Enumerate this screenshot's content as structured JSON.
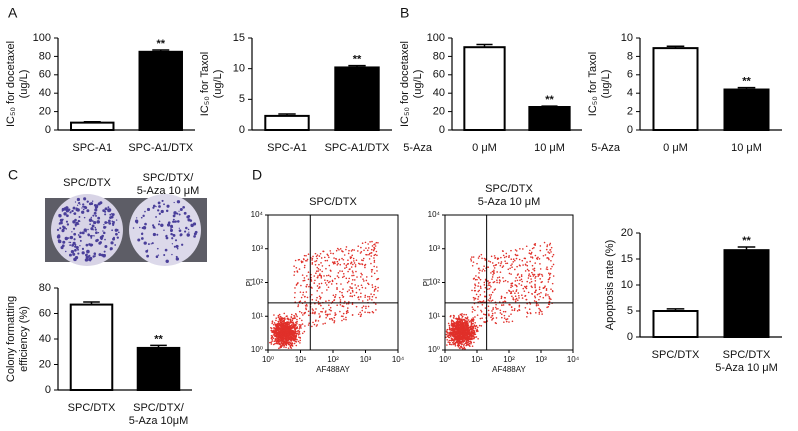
{
  "panels": [
    "A",
    "B",
    "C",
    "D"
  ],
  "photo_labels": [
    [
      "SPC/DTX"
    ],
    [
      "SPC/DTX/",
      "5-Aza 10 μM"
    ]
  ],
  "chart_data": [
    {
      "type": "bar",
      "ylabel": [
        "IC₅₀ for docetaxel",
        "(ug/L)"
      ],
      "categories": [
        [
          "SPC-A1"
        ],
        [
          "SPC-A1/DTX"
        ]
      ],
      "values": [
        8,
        85
      ],
      "errors": [
        1,
        2
      ],
      "significance": [
        null,
        "**"
      ],
      "colors": [
        "#ffffff",
        "#000000"
      ],
      "ylim": [
        0,
        100
      ],
      "yticks": [
        0,
        20,
        40,
        60,
        80,
        100
      ]
    },
    {
      "type": "bar",
      "ylabel": [
        "IC₅₀ for Taxol",
        "(ug/L)"
      ],
      "categories": [
        [
          "SPC-A1"
        ],
        [
          "SPC-A1/DTX"
        ]
      ],
      "values": [
        2.3,
        10.2
      ],
      "errors": [
        0.3,
        0.3
      ],
      "significance": [
        null,
        "**"
      ],
      "colors": [
        "#ffffff",
        "#000000"
      ],
      "ylim": [
        0,
        15
      ],
      "yticks": [
        0,
        5,
        10,
        15
      ]
    },
    {
      "type": "bar",
      "ylabel": [
        "IC₅₀ for docetaxel",
        "(ug/L)"
      ],
      "row_label": "5-Aza",
      "categories": [
        [
          "0 μM"
        ],
        [
          "10 μM"
        ]
      ],
      "values": [
        90,
        25
      ],
      "errors": [
        3,
        1
      ],
      "significance": [
        null,
        "**"
      ],
      "colors": [
        "#ffffff",
        "#000000"
      ],
      "ylim": [
        0,
        100
      ],
      "yticks": [
        0,
        20,
        40,
        60,
        80,
        100
      ]
    },
    {
      "type": "bar",
      "ylabel": [
        "IC₅₀ for Taxol",
        "(ug/L)"
      ],
      "row_label": "5-Aza",
      "categories": [
        [
          "0 μM"
        ],
        [
          "10 μM"
        ]
      ],
      "values": [
        8.9,
        4.4
      ],
      "errors": [
        0.2,
        0.2
      ],
      "significance": [
        null,
        "**"
      ],
      "colors": [
        "#ffffff",
        "#000000"
      ],
      "ylim": [
        0,
        10
      ],
      "yticks": [
        0,
        2,
        4,
        6,
        8,
        10
      ]
    },
    {
      "type": "bar",
      "ylabel": [
        "Colony formatting",
        "efficiency (%)"
      ],
      "categories": [
        [
          "SPC/DTX"
        ],
        [
          "SPC/DTX/",
          "5-Aza 10μM"
        ]
      ],
      "values": [
        67,
        33
      ],
      "errors": [
        2,
        2
      ],
      "significance": [
        null,
        "**"
      ],
      "colors": [
        "#ffffff",
        "#000000"
      ],
      "ylim": [
        0,
        80
      ],
      "yticks": [
        0,
        20,
        40,
        60,
        80
      ]
    },
    {
      "type": "flow",
      "title": [
        "SPC/DTX"
      ],
      "xlabel": "AF488AY",
      "ylabel": "PI",
      "log": true,
      "color": "#e0302a",
      "gates": {
        "x": 20,
        "y": 25
      },
      "xlim": [
        1,
        10000
      ],
      "ylim": [
        1,
        10000
      ],
      "xticks": [
        {
          "value": 1,
          "label": "10⁰"
        },
        {
          "value": 10,
          "label": "10¹"
        },
        {
          "value": 100,
          "label": "10²"
        },
        {
          "value": 1000,
          "label": "10³"
        },
        {
          "value": 10000,
          "label": "10⁴"
        }
      ],
      "yticks": [
        {
          "value": 1,
          "label": "10⁰"
        },
        {
          "value": 10,
          "label": "10¹"
        },
        {
          "value": 100,
          "label": "10²"
        },
        {
          "value": 1000,
          "label": "10³"
        },
        {
          "value": 10000,
          "label": "10⁴"
        }
      ]
    },
    {
      "type": "flow",
      "title": [
        "SPC/DTX",
        "5-Aza 10 μM"
      ],
      "xlabel": "AF488AY",
      "ylabel": "PI",
      "log": true,
      "color": "#e0302a",
      "gates": {
        "x": 20,
        "y": 25
      },
      "xlim": [
        1,
        10000
      ],
      "ylim": [
        1,
        10000
      ],
      "xticks": [
        {
          "value": 1,
          "label": "10⁰"
        },
        {
          "value": 10,
          "label": "10¹"
        },
        {
          "value": 100,
          "label": "10²"
        },
        {
          "value": 1000,
          "label": "10³"
        },
        {
          "value": 10000,
          "label": "10⁴"
        }
      ],
      "yticks": [
        {
          "value": 1,
          "label": "10⁰"
        },
        {
          "value": 10,
          "label": "10¹"
        },
        {
          "value": 100,
          "label": "10²"
        },
        {
          "value": 1000,
          "label": "10³"
        },
        {
          "value": 10000,
          "label": "10⁴"
        }
      ]
    },
    {
      "type": "bar",
      "ylabel": [
        "Apoptosis rate (%)"
      ],
      "categories": [
        [
          "SPC/DTX"
        ],
        [
          "SPC/DTX",
          "5-Aza 10 μM"
        ]
      ],
      "values": [
        5,
        16.7
      ],
      "errors": [
        0.4,
        0.6
      ],
      "significance": [
        null,
        "**"
      ],
      "colors": [
        "#ffffff",
        "#000000"
      ],
      "ylim": [
        0,
        20
      ],
      "yticks": [
        0,
        5,
        10,
        15,
        20
      ]
    }
  ]
}
